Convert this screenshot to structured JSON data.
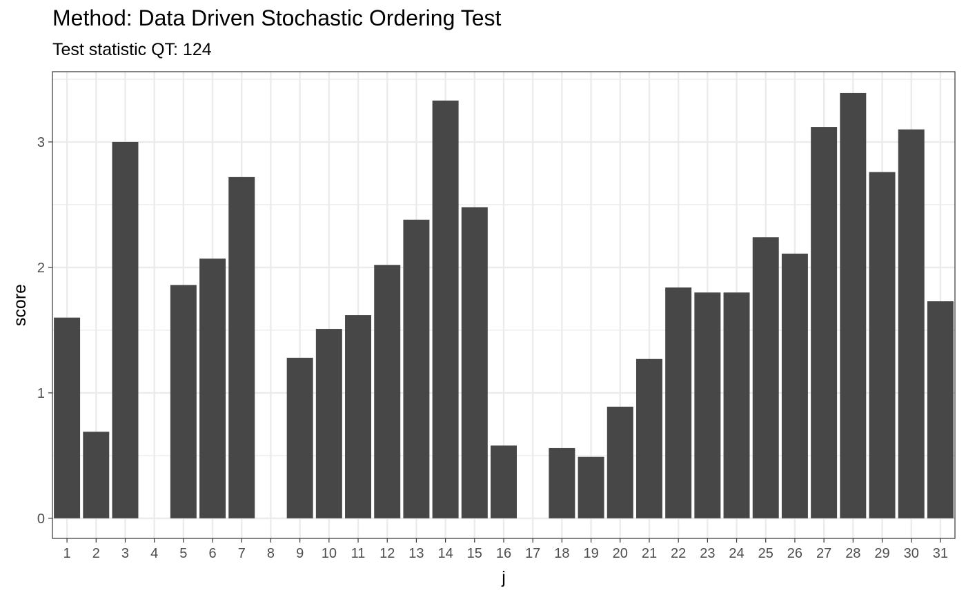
{
  "chart_data": {
    "type": "bar",
    "title": "Method: Data Driven Stochastic Ordering Test",
    "subtitle": "Test statistic QT: 124",
    "xlabel": "j",
    "ylabel": "score",
    "categories": [
      "1",
      "2",
      "3",
      "4",
      "5",
      "6",
      "7",
      "8",
      "9",
      "10",
      "11",
      "12",
      "13",
      "14",
      "15",
      "16",
      "17",
      "18",
      "19",
      "20",
      "21",
      "22",
      "23",
      "24",
      "25",
      "26",
      "27",
      "28",
      "29",
      "30",
      "31"
    ],
    "values": [
      1.6,
      0.69,
      3.0,
      0,
      1.86,
      2.07,
      2.72,
      0,
      1.28,
      1.51,
      1.62,
      2.02,
      2.38,
      3.33,
      2.48,
      0.58,
      0,
      0.56,
      0.49,
      0.89,
      1.27,
      1.84,
      1.8,
      1.8,
      2.24,
      2.11,
      3.12,
      3.39,
      2.76,
      3.1,
      1.73
    ],
    "ylim": [
      -0.16,
      3.56
    ],
    "yticks": [
      0,
      1,
      2,
      3
    ],
    "grid": true,
    "bar_color": "#474747",
    "grid_color": "#ebebeb",
    "panel_border_color": "#333333"
  }
}
